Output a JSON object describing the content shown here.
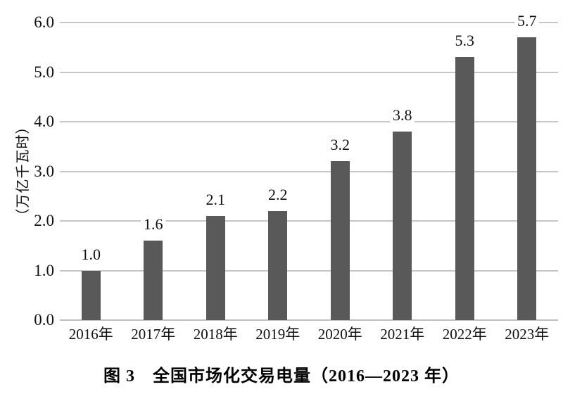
{
  "chart_data": {
    "type": "bar",
    "title": "图 3　全国市场化交易电量（2016—2023 年）",
    "ylabel": "（万亿千瓦时）",
    "xlabel": "",
    "categories": [
      "2016年",
      "2017年",
      "2018年",
      "2019年",
      "2020年",
      "2021年",
      "2022年",
      "2023年"
    ],
    "values": [
      1.0,
      1.6,
      2.1,
      2.2,
      3.2,
      3.8,
      5.3,
      5.7
    ],
    "value_labels": [
      "1.0",
      "1.6",
      "2.1",
      "2.2",
      "3.2",
      "3.8",
      "5.3",
      "5.7"
    ],
    "y_ticks": [
      0,
      1,
      2,
      3,
      4,
      5,
      6
    ],
    "y_tick_labels": [
      "0.0",
      "1.0",
      "2.0",
      "3.0",
      "4.0",
      "5.0",
      "6.0"
    ],
    "ylim": [
      0,
      6
    ],
    "grid": true,
    "legend_position": "none",
    "colors": {
      "bar": "#595959",
      "gridline": "#c6c6c6",
      "axis_line": "#bfbfbf",
      "text": "#111111",
      "background": "#ffffff"
    }
  }
}
